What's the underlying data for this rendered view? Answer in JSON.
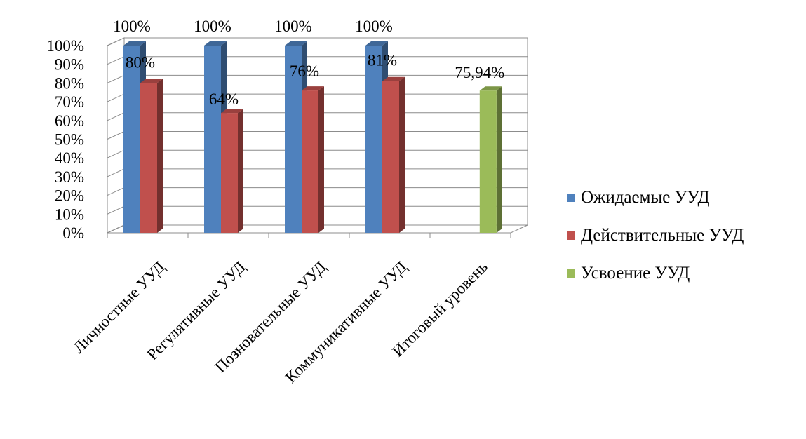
{
  "chart_data": {
    "type": "bar",
    "categories": [
      "Личностные УУД",
      "Регулятивные УУД",
      "Позновательные УУД",
      "Коммуникативные УУД",
      "Итоговый уровень"
    ],
    "series": [
      {
        "name": "Ожидаемые УУД",
        "color": "#4F81BD",
        "values": [
          100,
          100,
          100,
          100,
          null
        ],
        "labels": [
          "100%",
          "100%",
          "100%",
          "100%",
          ""
        ]
      },
      {
        "name": "Действительные УУД",
        "color": "#C0504D",
        "values": [
          80,
          64,
          76,
          81,
          null
        ],
        "labels": [
          "80%",
          "64%",
          "76%",
          "81%",
          ""
        ]
      },
      {
        "name": "Усвоение УУД",
        "color": "#9BBB59",
        "values": [
          null,
          null,
          null,
          null,
          75.94
        ],
        "labels": [
          "",
          "",
          "",
          "",
          "75,94%"
        ]
      }
    ],
    "y_ticks": [
      "0%",
      "10%",
      "20%",
      "30%",
      "40%",
      "50%",
      "60%",
      "70%",
      "80%",
      "90%",
      "100%"
    ],
    "ylim": [
      0,
      100
    ],
    "grid": true,
    "legend_position": "right",
    "style": "3d-clustered-column"
  }
}
